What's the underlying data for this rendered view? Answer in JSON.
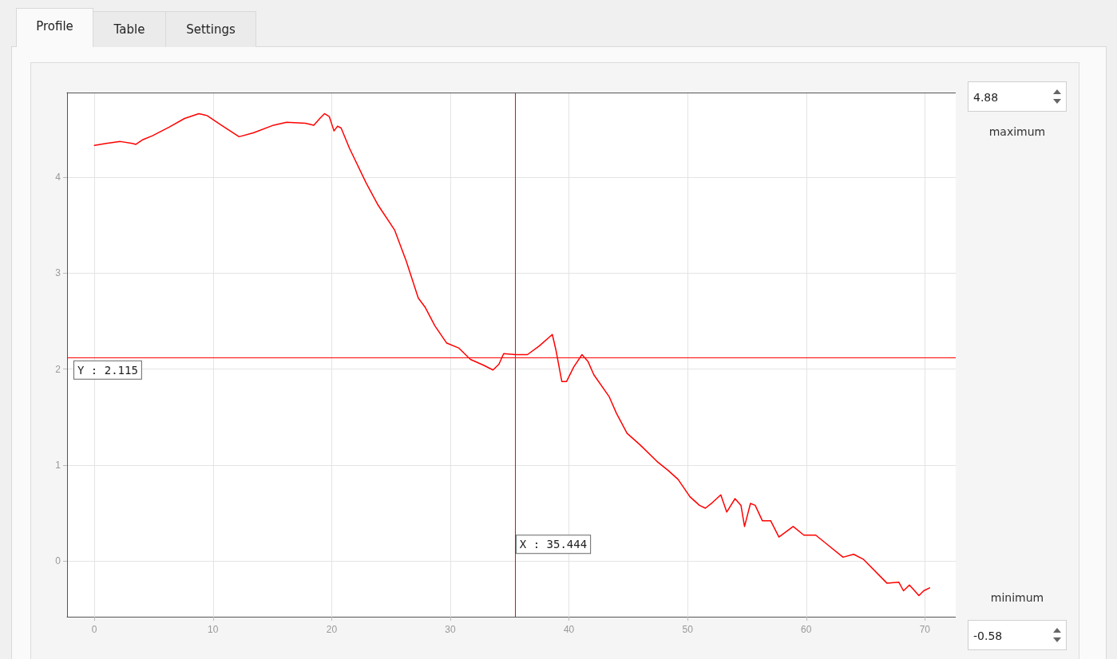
{
  "chart_data": {
    "type": "line",
    "x": [
      0,
      1,
      2.2,
      3.2,
      3.5,
      4.1,
      4.9,
      6.3,
      7.6,
      8.8,
      9.5,
      10.7,
      12.2,
      13.4,
      15.1,
      16.2,
      17.8,
      18.5,
      19,
      19.4,
      19.8,
      20.2,
      20.5,
      20.8,
      21.5,
      22.9,
      23.9,
      25.3,
      26.3,
      27.3,
      27.9,
      28.7,
      29.7,
      30.7,
      31.7,
      32.8,
      33.6,
      34.1,
      34.5,
      35.5,
      36.5,
      37.5,
      38.6,
      38.9,
      39.4,
      39.8,
      40.4,
      41.1,
      41.6,
      42.1,
      43.4,
      44,
      44.9,
      46,
      47.4,
      48.4,
      49.2,
      50.2,
      51,
      51.5,
      52.1,
      52.8,
      53.3,
      54,
      54.5,
      54.8,
      55.3,
      55.7,
      56.3,
      57,
      57.7,
      58.9,
      59.8,
      60.8,
      61.8,
      63.1,
      64,
      64.8,
      66.8,
      67.8,
      68.2,
      68.7,
      69.5,
      69.9,
      70.4
    ],
    "series": [
      {
        "color": "#ff0000",
        "values": [
          4.33,
          4.35,
          4.37,
          4.35,
          4.34,
          4.39,
          4.43,
          4.52,
          4.61,
          4.66,
          4.64,
          4.54,
          4.42,
          4.46,
          4.54,
          4.57,
          4.56,
          4.54,
          4.61,
          4.66,
          4.63,
          4.48,
          4.53,
          4.51,
          4.3,
          3.94,
          3.71,
          3.45,
          3.12,
          2.74,
          2.64,
          2.45,
          2.27,
          2.22,
          2.1,
          2.04,
          1.99,
          2.05,
          2.16,
          2.15,
          2.15,
          2.24,
          2.36,
          2.2,
          1.87,
          1.87,
          2.02,
          2.15,
          2.08,
          1.94,
          1.71,
          1.54,
          1.33,
          1.21,
          1.04,
          0.94,
          0.85,
          0.67,
          0.58,
          0.55,
          0.61,
          0.69,
          0.51,
          0.65,
          0.58,
          0.36,
          0.6,
          0.58,
          0.42,
          0.42,
          0.25,
          0.36,
          0.27,
          0.27,
          0.17,
          0.04,
          0.07,
          0.02,
          -0.23,
          -0.22,
          -0.31,
          -0.25,
          -0.36,
          -0.31,
          -0.28
        ]
      }
    ],
    "xlim": [
      -2.3,
      72.6
    ],
    "xticks": [
      0,
      10,
      20,
      30,
      40,
      50,
      60,
      70
    ],
    "ylim": [
      -0.58,
      4.88
    ],
    "yticks": [
      0,
      1,
      2,
      3,
      4
    ],
    "grid": true,
    "marker": "none",
    "line_style": "solid",
    "ref_lines": [
      {
        "axis": "x",
        "value": 35.444,
        "label": "X : 35.444",
        "color": "#ff0000"
      },
      {
        "axis": "y",
        "value": 2.115,
        "label": "Y : 2.115",
        "color": "#ff0000"
      }
    ],
    "annotations": [
      "Profile",
      "Table",
      "Settings",
      "4.88",
      "maximum",
      "minimum",
      "-0.58"
    ]
  }
}
